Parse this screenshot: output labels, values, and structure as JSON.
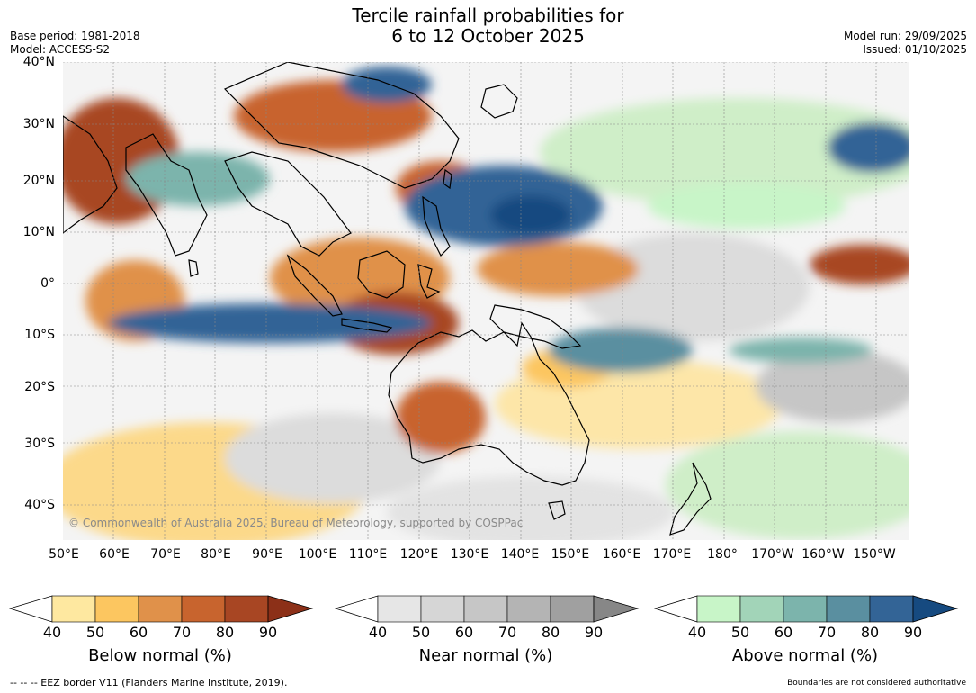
{
  "title_line1": "Tercile rainfall probabilities for",
  "title_line2": "6 to 12 October 2025",
  "base_period": "Base period: 1981-2018",
  "model": "Model: ACCESS-S2",
  "model_run": "Model run: 29/09/2025",
  "issued": "Issued: 01/10/2025",
  "copyright": "© Commonwealth of Australia 2025, Bureau of Meteorology, supported by COSPPac",
  "lat_labels": [
    "40°N",
    "30°N",
    "20°N",
    "10°N",
    "0°",
    "10°S",
    "20°S",
    "30°S",
    "40°S"
  ],
  "lon_labels": [
    "50°E",
    "60°E",
    "70°E",
    "80°E",
    "90°E",
    "100°E",
    "110°E",
    "120°E",
    "130°E",
    "140°E",
    "150°E",
    "160°E",
    "170°E",
    "180°",
    "170°W",
    "160°W",
    "150°W"
  ],
  "colorbars": [
    {
      "title": "Below normal (%)",
      "ticks": [
        "40",
        "50",
        "60",
        "70",
        "80",
        "90"
      ],
      "colors": [
        "#ffffff",
        "#fee8a0",
        "#fcc660",
        "#e0914a",
        "#c8642e",
        "#a84623",
        "#8c3018"
      ]
    },
    {
      "title": "Near normal (%)",
      "ticks": [
        "40",
        "50",
        "60",
        "70",
        "80",
        "90"
      ],
      "colors": [
        "#ffffff",
        "#e6e6e6",
        "#d6d6d6",
        "#c6c6c6",
        "#b4b4b4",
        "#a0a0a0",
        "#878787"
      ]
    },
    {
      "title": "Above normal (%)",
      "ticks": [
        "40",
        "50",
        "60",
        "70",
        "80",
        "90"
      ],
      "colors": [
        "#ffffff",
        "#c8f5c8",
        "#a2d4b8",
        "#7cb4ac",
        "#5a8fa0",
        "#336496",
        "#164a80"
      ]
    }
  ],
  "footer_left": "--  --  -- EEZ border V11 (Flanders Marine Institute, 2019).",
  "footer_right": "Boundaries are not considered authoritative"
}
